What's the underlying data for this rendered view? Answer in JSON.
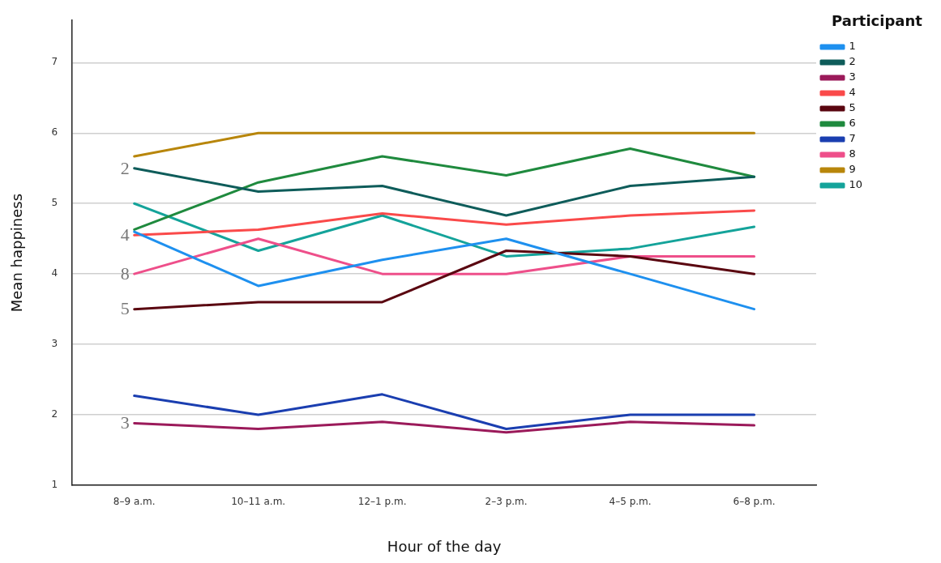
{
  "chart_data": {
    "type": "line",
    "xlabel": "Hour of the day",
    "ylabel": "Mean happiness",
    "legend_title": "Participant",
    "categories": [
      "8–9 a.m.",
      "10–11 a.m.",
      "12–1 p.m.",
      "2–3 p.m.",
      "4–5 p.m.",
      "6–8 p.m."
    ],
    "series": [
      {
        "name": "1",
        "color": "#1e90ef",
        "values": [
          4.6,
          3.83,
          4.2,
          4.5,
          4.0,
          3.5
        ]
      },
      {
        "name": "2",
        "color": "#0e5c5a",
        "values": [
          5.5,
          5.17,
          5.25,
          4.83,
          5.25,
          5.38
        ]
      },
      {
        "name": "3",
        "color": "#9b1a5a",
        "values": [
          1.88,
          1.8,
          1.9,
          1.75,
          1.9,
          1.85
        ]
      },
      {
        "name": "4",
        "color": "#fa4a4a",
        "values": [
          4.55,
          4.63,
          4.86,
          4.7,
          4.83,
          4.9
        ]
      },
      {
        "name": "5",
        "color": "#5a0610",
        "values": [
          3.5,
          3.6,
          3.6,
          4.33,
          4.25,
          4.0
        ]
      },
      {
        "name": "6",
        "color": "#1f8a3e",
        "values": [
          4.63,
          5.3,
          5.67,
          5.4,
          5.78,
          5.38
        ]
      },
      {
        "name": "7",
        "color": "#1a3eb0",
        "values": [
          2.27,
          2.0,
          2.29,
          1.8,
          2.0,
          2.0
        ]
      },
      {
        "name": "8",
        "color": "#ee4f8a",
        "values": [
          4.0,
          4.5,
          4.0,
          4.0,
          4.25,
          4.25
        ]
      },
      {
        "name": "9",
        "color": "#b8860b",
        "values": [
          5.67,
          6.0,
          6.0,
          6.0,
          6.0,
          6.0
        ]
      },
      {
        "name": "10",
        "color": "#14a39a",
        "values": [
          5.0,
          4.33,
          4.83,
          4.25,
          4.36,
          4.67
        ]
      }
    ],
    "annotations": [
      {
        "text": "2",
        "x": "8–9 a.m.",
        "y": 5.5
      },
      {
        "text": "4",
        "x": "8–9 a.m.",
        "y": 4.55
      },
      {
        "text": "8",
        "x": "8–9 a.m.",
        "y": 4.0
      },
      {
        "text": "5",
        "x": "8–9 a.m.",
        "y": 3.5
      },
      {
        "text": "3",
        "x": "8–9 a.m.",
        "y": 1.88
      }
    ],
    "ylim": [
      1,
      7.6
    ],
    "yticks": [
      1,
      2,
      3,
      4,
      5,
      6,
      7
    ],
    "grid": "y",
    "legend": "top right",
    "marker": "none",
    "line_style": "solid"
  }
}
